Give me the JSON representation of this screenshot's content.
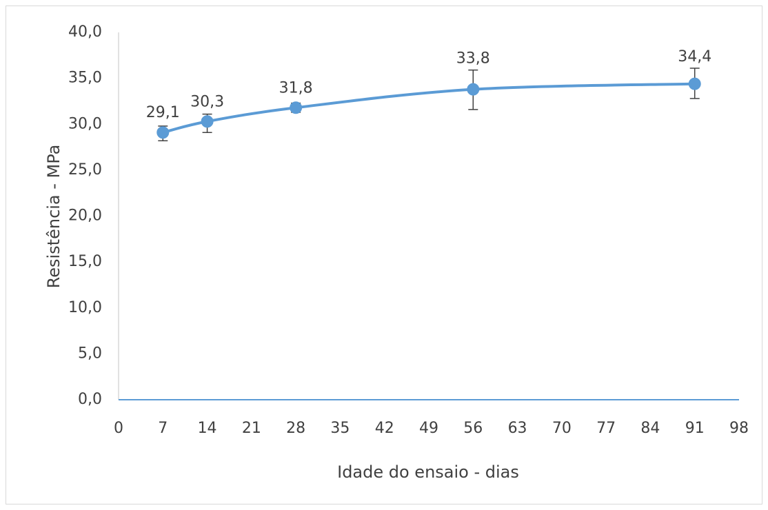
{
  "chart_data": {
    "type": "line",
    "title": "",
    "xlabel": "Idade do ensaio - dias",
    "ylabel": "Resistência - MPa",
    "x_ticks": [
      0,
      7,
      14,
      21,
      28,
      35,
      42,
      49,
      56,
      63,
      70,
      77,
      84,
      91,
      98
    ],
    "x_tick_labels": [
      "0",
      "7",
      "14",
      "21",
      "28",
      "35",
      "42",
      "49",
      "56",
      "63",
      "70",
      "77",
      "84",
      "91",
      "98"
    ],
    "y_ticks": [
      0,
      5,
      10,
      15,
      20,
      25,
      30,
      35,
      40
    ],
    "y_tick_labels": [
      "0,0",
      "5,0",
      "10,0",
      "15,0",
      "20,0",
      "25,0",
      "30,0",
      "35,0",
      "40,0"
    ],
    "xlim": [
      0,
      98
    ],
    "ylim": [
      0,
      40
    ],
    "grid": false,
    "legend": "none",
    "series": [
      {
        "color": "#5b9bd5",
        "marker": "circle",
        "smooth": true,
        "x": [
          7,
          14,
          28,
          56,
          91
        ],
        "y": [
          29.1,
          30.3,
          31.8,
          33.8,
          34.4
        ],
        "error_low": [
          28.2,
          29.1,
          31.3,
          31.6,
          32.8
        ],
        "error_high": [
          29.8,
          31.1,
          32.3,
          35.9,
          36.1
        ],
        "labels": [
          "29,1",
          "30,3",
          "31,8",
          "33,8",
          "34,4"
        ]
      }
    ]
  }
}
